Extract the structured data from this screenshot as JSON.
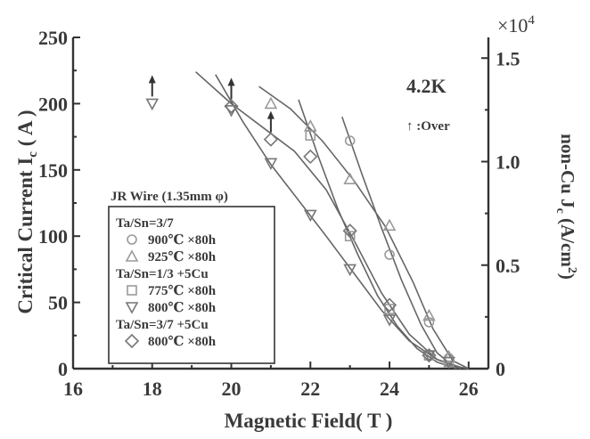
{
  "chart_data": {
    "type": "scatter",
    "xlabel": "Magnetic Field( T )",
    "ylabel_left": "Critical Current I",
    "ylabel_left_sub": "c",
    "ylabel_left_unit": " ( A )",
    "ylabel_right": "non-Cu J",
    "ylabel_right_sub": "c",
    "ylabel_right_unit": " (A/cm",
    "ylabel_right_sup": "2",
    "ylabel_right_close": ")",
    "right_multiplier": "×10",
    "right_multiplier_exp": "4",
    "xlim": [
      16,
      26.5
    ],
    "ylim": [
      0,
      250
    ],
    "ylim_right": [
      0,
      1.6
    ],
    "x_ticks": [
      16,
      18,
      20,
      22,
      24,
      26
    ],
    "y_ticks": [
      0,
      50,
      100,
      150,
      200,
      250
    ],
    "y_ticks_right": [
      0,
      0.5,
      1.0,
      1.5
    ],
    "y_ticks_right_labels": [
      "0",
      "0.5",
      "1.0",
      "1.5"
    ],
    "annotation_temp": "4.2K",
    "annotation_over": "↑ :Over",
    "legend_title": "JR Wire (1.35mm φ)",
    "legend_placement": "bottom-left",
    "legend_groups": [
      {
        "label": "Ta/Sn=3/7",
        "entries": [
          {
            "series": 0,
            "label": "900℃ ×80h"
          },
          {
            "series": 1,
            "label": "925℃ ×80h"
          }
        ]
      },
      {
        "label": "Ta/Sn=1/3 +5Cu",
        "entries": [
          {
            "series": 2,
            "label": "775℃ ×80h"
          },
          {
            "series": 3,
            "label": "800℃ ×80h"
          }
        ]
      },
      {
        "label": "Ta/Sn=3/7 +5Cu",
        "entries": [
          {
            "series": 4,
            "label": "800℃ ×80h"
          }
        ]
      }
    ],
    "series": [
      {
        "marker": "circle",
        "color": "#9a9a9a",
        "x": [
          23,
          24,
          25,
          25.5
        ],
        "y": [
          172,
          86,
          35,
          8
        ],
        "fit": [
          [
            22.8,
            190
          ],
          [
            23.3,
            147
          ],
          [
            23.8,
            106
          ],
          [
            24.3,
            67
          ],
          [
            24.8,
            33
          ],
          [
            25.2,
            12
          ],
          [
            25.6,
            2
          ],
          [
            26,
            0
          ]
        ]
      },
      {
        "marker": "triangle-up",
        "color": "#9a9a9a",
        "x": [
          21,
          22,
          23,
          24,
          25,
          25.5
        ],
        "y": [
          200,
          183,
          143,
          108,
          40,
          9
        ],
        "fit": [
          [
            20.7,
            213
          ],
          [
            21.5,
            196
          ],
          [
            22.3,
            172
          ],
          [
            23.1,
            142
          ],
          [
            23.9,
            107
          ],
          [
            24.6,
            65
          ],
          [
            25.1,
            30
          ],
          [
            25.6,
            6
          ],
          [
            26,
            0
          ]
        ]
      },
      {
        "marker": "square",
        "color": "#9a9a9a",
        "x": [
          22,
          23,
          24,
          25,
          25.5
        ],
        "y": [
          176,
          100,
          45,
          10,
          5
        ],
        "fit": [
          [
            21.7,
            203
          ],
          [
            22.2,
            160
          ],
          [
            22.7,
            120
          ],
          [
            23.2,
            86
          ],
          [
            23.7,
            55
          ],
          [
            24.2,
            32
          ],
          [
            24.7,
            15
          ],
          [
            25.2,
            5
          ],
          [
            25.7,
            0
          ]
        ]
      },
      {
        "marker": "triangle-down",
        "color": "#777777",
        "x": [
          18,
          20,
          21,
          22,
          23,
          24,
          25,
          25.5
        ],
        "y": [
          200,
          195,
          155,
          116,
          75,
          37,
          10,
          5
        ],
        "over": [
          18
        ],
        "fit": [
          [
            19.6,
            222
          ],
          [
            20.3,
            186
          ],
          [
            21,
            154
          ],
          [
            21.7,
            127
          ],
          [
            22.4,
            100
          ],
          [
            23.1,
            72
          ],
          [
            23.8,
            44
          ],
          [
            24.5,
            21
          ],
          [
            25.2,
            7
          ],
          [
            25.8,
            1
          ],
          [
            26,
            0
          ]
        ]
      },
      {
        "marker": "diamond",
        "color": "#777777",
        "x": [
          20,
          21,
          22,
          23,
          24,
          25
        ],
        "y": [
          198,
          173,
          160,
          104,
          48,
          10
        ],
        "over": [
          20,
          21
        ],
        "fit": [
          [
            19.1,
            224
          ],
          [
            20,
            200
          ],
          [
            20.8,
            182
          ],
          [
            21.6,
            164
          ],
          [
            22.4,
            135
          ],
          [
            23.1,
            97
          ],
          [
            23.8,
            57
          ],
          [
            24.5,
            26
          ],
          [
            25.2,
            7
          ],
          [
            25.8,
            0
          ]
        ]
      }
    ]
  }
}
